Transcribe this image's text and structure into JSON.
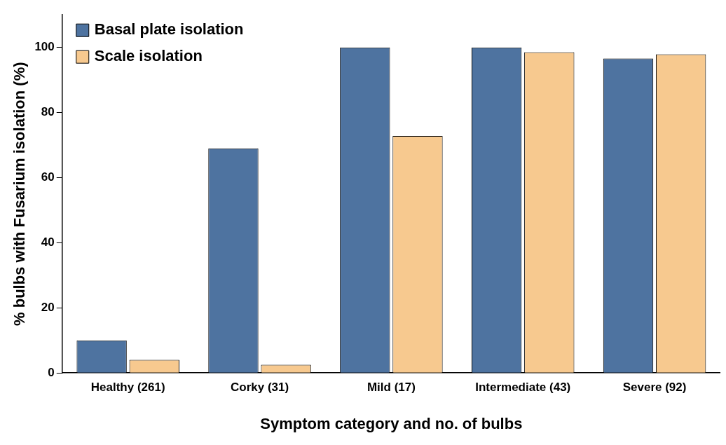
{
  "chart_data": {
    "type": "bar",
    "xlabel": "Symptom category and no. of bulbs",
    "ylabel": "% bulbs with Fusarium isolation (%)",
    "categories": [
      "Healthy (261)",
      "Corky (31)",
      "Mild (17)",
      "Intermediate (43)",
      "Severe (92)"
    ],
    "series": [
      {
        "name": "Basal plate isolation",
        "color": "#4e73a0",
        "values": [
          10,
          69,
          100,
          100,
          96.6
        ]
      },
      {
        "name": "Scale isolation",
        "color": "#f7c98f",
        "values": [
          4,
          2.5,
          72.8,
          98.5,
          97.9
        ]
      }
    ],
    "ylim": [
      0,
      110
    ],
    "yticks": [
      0,
      20,
      40,
      60,
      80,
      100
    ],
    "grid": false,
    "legend": "top left"
  }
}
